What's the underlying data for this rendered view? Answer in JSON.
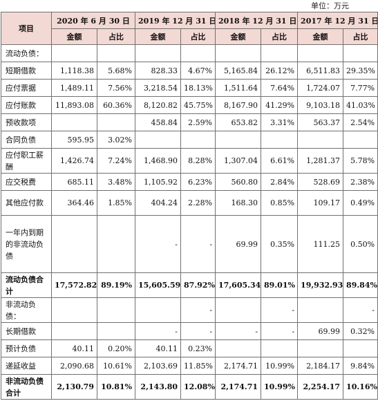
{
  "unit": "单位：万元",
  "header": {
    "item": "项目",
    "periods": [
      "2020 年 6 月 30 日",
      "2019 年 12 月 31 日",
      "2018 年 12 月 31 日",
      "2017 年 12 月 31 日"
    ],
    "amount": "金额",
    "ratio": "占比"
  },
  "rows": [
    {
      "label": "流动负债：",
      "cells": [
        "",
        "",
        "",
        "",
        "",
        "",
        "",
        ""
      ],
      "bold": false,
      "h": "r1"
    },
    {
      "label": "短期借款",
      "cells": [
        "1,118.38",
        "5.68%",
        "828.33",
        "4.67%",
        "5,165.84",
        "26.12%",
        "6,511.83",
        "29.35%"
      ],
      "bold": false,
      "h": "r1"
    },
    {
      "label": "应付票据",
      "cells": [
        "1,489.11",
        "7.56%",
        "3,218.54",
        "18.13%",
        "1,511.64",
        "7.64%",
        "1,724.07",
        "7.77%"
      ],
      "bold": false,
      "h": "r1"
    },
    {
      "label": "应付账款",
      "cells": [
        "11,893.08",
        "60.36%",
        "8,120.82",
        "45.75%",
        "8,167.90",
        "41.29%",
        "9,103.18",
        "41.03%"
      ],
      "bold": false,
      "h": "r1"
    },
    {
      "label": "预收款项",
      "cells": [
        "",
        "",
        "458.84",
        "2.59%",
        "653.82",
        "3.31%",
        "563.37",
        "2.54%"
      ],
      "bold": false,
      "h": "r1"
    },
    {
      "label": "合同负债",
      "cells": [
        "595.95",
        "3.02%",
        "",
        "",
        "",
        "",
        "",
        ""
      ],
      "bold": false,
      "h": "r1"
    },
    {
      "label": "应付职工薪酬",
      "cells": [
        "1,426.74",
        "7.24%",
        "1,468.90",
        "8.28%",
        "1,307.04",
        "6.61%",
        "1,281.37",
        "5.78%"
      ],
      "bold": false,
      "h": "r2"
    },
    {
      "label": "应交税费",
      "cells": [
        "685.11",
        "3.48%",
        "1,105.92",
        "6.23%",
        "560.80",
        "2.84%",
        "528.69",
        "2.38%"
      ],
      "bold": false,
      "h": "r1"
    },
    {
      "label": "其他应付款",
      "cells": [
        "364.46",
        "1.85%",
        "404.24",
        "2.28%",
        "168.30",
        "0.85%",
        "109.17",
        "0.49%"
      ],
      "bold": false,
      "h": "r2"
    },
    {
      "label": "一年内到期的非流动负债",
      "cells": [
        "",
        "",
        "-",
        "-",
        "69.99",
        "0.35%",
        "111.25",
        "0.50%"
      ],
      "bold": false,
      "h": "r3"
    },
    {
      "label": "流动负债合计",
      "cells": [
        "17,572.82",
        "89.19%",
        "15,605.59",
        "87.92%",
        "17,605.34",
        "89.01%",
        "19,932.93",
        "89.84%"
      ],
      "bold": true,
      "h": "r2"
    },
    {
      "label": "非流动负债：",
      "cells": [
        "",
        "",
        "",
        "-",
        "",
        "-",
        "",
        "-"
      ],
      "bold": false,
      "h": "r2"
    },
    {
      "label": "长期借款",
      "cells": [
        "",
        "",
        "-",
        "-",
        "-",
        "-",
        "69.99",
        "0.32%"
      ],
      "bold": false,
      "h": "r1"
    },
    {
      "label": "预计负债",
      "cells": [
        "40.11",
        "0.20%",
        "40.11",
        "0.23%",
        "",
        "",
        "",
        ""
      ],
      "bold": false,
      "h": "r1"
    },
    {
      "label": "递延收益",
      "cells": [
        "2,090.68",
        "10.61%",
        "2,103.69",
        "11.85%",
        "2,174.71",
        "10.99%",
        "2,184.17",
        "9.84%"
      ],
      "bold": false,
      "h": "r1"
    },
    {
      "label": "非流动负债合计",
      "cells": [
        "2,130.79",
        "10.81%",
        "2,143.80",
        "12.08%",
        "2,174.71",
        "10.99%",
        "2,254.17",
        "10.16%"
      ],
      "bold": true,
      "h": "r2"
    }
  ]
}
